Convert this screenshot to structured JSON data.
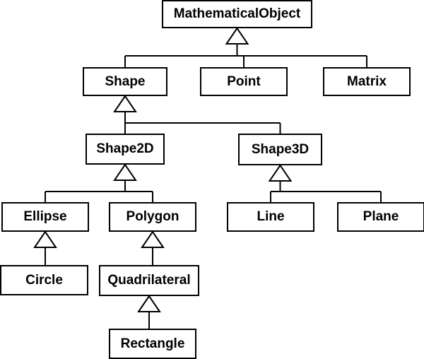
{
  "diagram": {
    "type": "class-inheritance-hierarchy",
    "nodes": [
      {
        "id": "mathematical-object",
        "label": "MathematicalObject"
      },
      {
        "id": "shape",
        "label": "Shape"
      },
      {
        "id": "point",
        "label": "Point"
      },
      {
        "id": "matrix",
        "label": "Matrix"
      },
      {
        "id": "shape2d",
        "label": "Shape2D"
      },
      {
        "id": "shape3d",
        "label": "Shape3D"
      },
      {
        "id": "ellipse",
        "label": "Ellipse"
      },
      {
        "id": "polygon",
        "label": "Polygon"
      },
      {
        "id": "line",
        "label": "Line"
      },
      {
        "id": "plane",
        "label": "Plane"
      },
      {
        "id": "circle",
        "label": "Circle"
      },
      {
        "id": "quadrilateral",
        "label": "Quadrilateral"
      },
      {
        "id": "rectangle",
        "label": "Rectangle"
      }
    ],
    "edges": [
      {
        "child": "shape",
        "parent": "mathematical-object"
      },
      {
        "child": "point",
        "parent": "mathematical-object"
      },
      {
        "child": "matrix",
        "parent": "mathematical-object"
      },
      {
        "child": "shape2d",
        "parent": "shape"
      },
      {
        "child": "shape3d",
        "parent": "shape"
      },
      {
        "child": "ellipse",
        "parent": "shape2d"
      },
      {
        "child": "polygon",
        "parent": "shape2d"
      },
      {
        "child": "line",
        "parent": "shape3d"
      },
      {
        "child": "plane",
        "parent": "shape3d"
      },
      {
        "child": "circle",
        "parent": "ellipse"
      },
      {
        "child": "quadrilateral",
        "parent": "polygon"
      },
      {
        "child": "rectangle",
        "parent": "quadrilateral"
      }
    ],
    "colors": {
      "stroke": "#000000",
      "fill": "#ffffff",
      "text": "#000000"
    }
  }
}
